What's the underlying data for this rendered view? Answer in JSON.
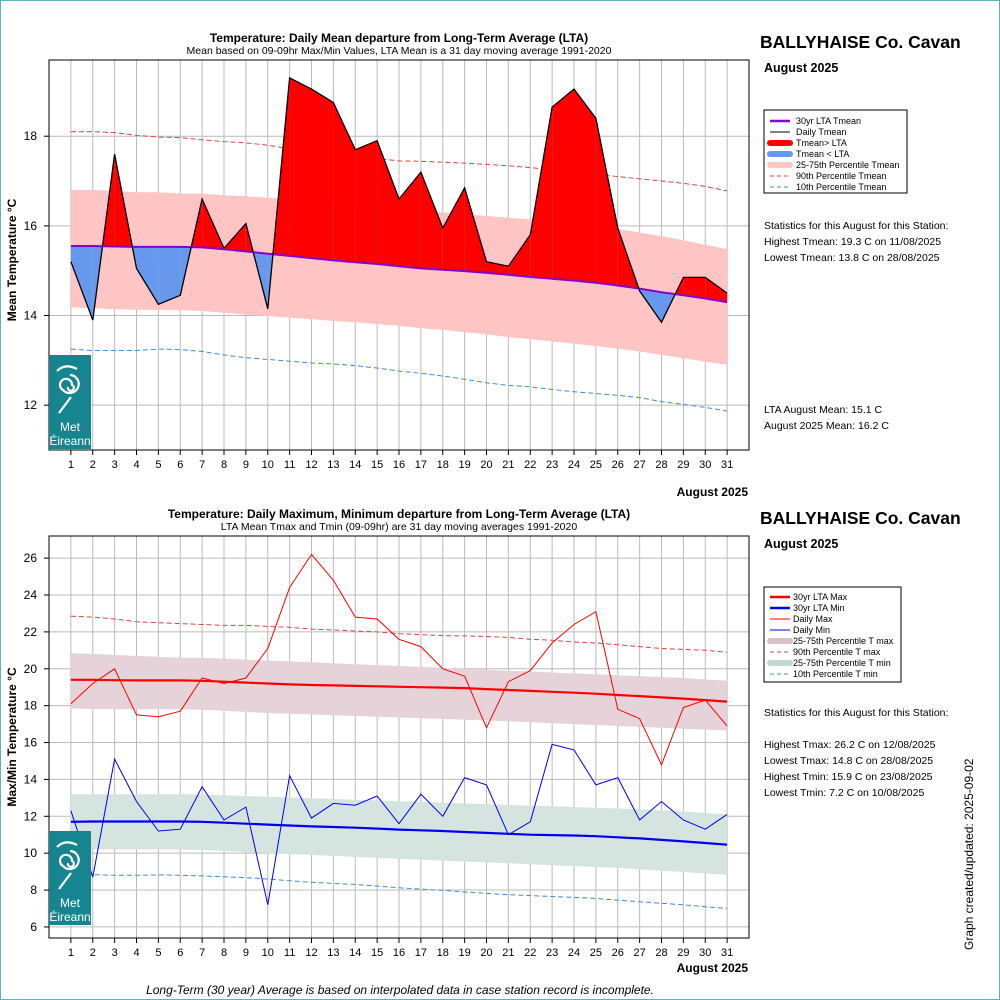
{
  "footer_note": "Long-Term (30 year) Average is based on interpolated data in case station record is incomplete.",
  "created_label": "Graph created/updated:  2025-09-02",
  "logo": {
    "line1": "Met",
    "line2": "Éireann",
    "color": "#17858f"
  },
  "top": {
    "title": "Temperature: Daily Mean departure from Long-Term Average (LTA)",
    "subtitle": "Mean based on 09-09hr Max/Min Values, LTA Mean is a 31 day moving average 1991-2020",
    "station": "BALLYHAISE Co. Cavan",
    "month": "August 2025",
    "ylabel": "Mean Temperature °C",
    "xlabel": "August 2025",
    "legend": [
      "30yr LTA Tmean",
      "Daily Tmean",
      "Tmean> LTA",
      "Tmean < LTA",
      "25-75th Percentile Tmean",
      "90th Percentile Tmean",
      "10th Percentile Tmean"
    ],
    "stats_heading": "Statistics for this August for this Station:",
    "stats": [
      "Highest Tmean: 19.3 C on 11/08/2025",
      "Lowest Tmean: 13.8 C on 28/08/2025"
    ],
    "means": [
      "LTA August Mean: 15.1 C",
      "August 2025 Mean: 16.2 C"
    ]
  },
  "bottom": {
    "title": "Temperature: Daily Maximum, Minimum departure from Long-Term Average (LTA)",
    "subtitle": "LTA Mean Tmax and Tmin (09-09hr) are 31 day moving averages 1991-2020",
    "station": "BALLYHAISE Co. Cavan",
    "month": "August 2025",
    "ylabel": "Max/Min Temperature °C",
    "xlabel": "August 2025",
    "legend": [
      "30yr LTA Max",
      "30yr LTA Min",
      "Daily Max",
      "Daily Min",
      "25-75th Percentile T max",
      "90th Percentile T max",
      "25-75th Percentile T min",
      "10th Percentile T min"
    ],
    "stats_heading": "Statistics for this August for this Station:",
    "stats": [
      "Highest Tmax: 26.2 C on 12/08/2025",
      "Lowest Tmax: 14.8 C on 28/08/2025",
      "Highest Tmin: 15.9 C on 23/08/2025",
      "Lowest Tmin: 7.2 C on 10/08/2025"
    ]
  },
  "chart_data": [
    {
      "type": "area",
      "x": [
        1,
        2,
        3,
        4,
        5,
        6,
        7,
        8,
        9,
        10,
        11,
        12,
        13,
        14,
        15,
        16,
        17,
        18,
        19,
        20,
        21,
        22,
        23,
        24,
        25,
        26,
        27,
        28,
        29,
        30,
        31
      ],
      "xlim": [
        0,
        32
      ],
      "ylim": [
        11,
        19.7
      ],
      "yticks": [
        12,
        14,
        16,
        18
      ],
      "series": [
        {
          "name": "Daily Tmean",
          "values": [
            15.2,
            13.9,
            17.6,
            15.05,
            14.25,
            14.45,
            16.6,
            15.5,
            16.05,
            14.15,
            19.3,
            19.05,
            18.75,
            17.7,
            17.9,
            16.6,
            17.2,
            15.95,
            16.85,
            15.2,
            15.1,
            15.8,
            18.65,
            19.05,
            18.4,
            15.95,
            14.55,
            13.85,
            14.85,
            14.85,
            14.5
          ]
        },
        {
          "name": "30yr LTA Tmean",
          "values": [
            15.55,
            15.55,
            15.54,
            15.53,
            15.53,
            15.53,
            15.52,
            15.48,
            15.43,
            15.38,
            15.33,
            15.28,
            15.23,
            15.19,
            15.15,
            15.1,
            15.05,
            15.02,
            14.99,
            14.95,
            14.91,
            14.86,
            14.82,
            14.78,
            14.73,
            14.67,
            14.6,
            14.52,
            14.45,
            14.38,
            14.3
          ]
        },
        {
          "name": "90th Percentile Tmean",
          "values": [
            18.1,
            18.1,
            18.08,
            18.02,
            17.98,
            17.97,
            17.92,
            17.88,
            17.85,
            17.8,
            17.72,
            17.68,
            17.62,
            17.55,
            17.5,
            17.45,
            17.44,
            17.42,
            17.4,
            17.37,
            17.34,
            17.3,
            17.25,
            17.2,
            17.15,
            17.1,
            17.05,
            17.0,
            16.95,
            16.88,
            16.78
          ]
        },
        {
          "name": "10th Percentile Tmean",
          "values": [
            13.25,
            13.22,
            13.22,
            13.22,
            13.25,
            13.24,
            13.2,
            13.12,
            13.06,
            13.02,
            12.98,
            12.94,
            12.92,
            12.88,
            12.83,
            12.76,
            12.71,
            12.65,
            12.58,
            12.5,
            12.44,
            12.41,
            12.35,
            12.3,
            12.26,
            12.22,
            12.17,
            12.08,
            12.02,
            11.95,
            11.87
          ]
        },
        {
          "name": "25-75th Percentile Tmean",
          "upper": [
            16.8,
            16.8,
            16.78,
            16.75,
            16.75,
            16.72,
            16.72,
            16.68,
            16.66,
            16.63,
            16.58,
            16.52,
            16.48,
            16.45,
            16.4,
            16.36,
            16.33,
            16.3,
            16.26,
            16.22,
            16.18,
            16.14,
            16.1,
            16.05,
            16.0,
            15.93,
            15.85,
            15.77,
            15.68,
            15.58,
            15.48
          ],
          "lower": [
            14.18,
            14.16,
            14.14,
            14.13,
            14.13,
            14.12,
            14.1,
            14.06,
            14.02,
            13.99,
            13.95,
            13.92,
            13.88,
            13.85,
            13.81,
            13.77,
            13.72,
            13.68,
            13.63,
            13.58,
            13.52,
            13.47,
            13.42,
            13.37,
            13.32,
            13.26,
            13.2,
            13.12,
            13.05,
            12.97,
            12.9
          ]
        }
      ]
    },
    {
      "type": "line",
      "x": [
        1,
        2,
        3,
        4,
        5,
        6,
        7,
        8,
        9,
        10,
        11,
        12,
        13,
        14,
        15,
        16,
        17,
        18,
        19,
        20,
        21,
        22,
        23,
        24,
        25,
        26,
        27,
        28,
        29,
        30,
        31
      ],
      "xlim": [
        0,
        32
      ],
      "ylim": [
        5.4,
        27.2
      ],
      "yticks": [
        6,
        8,
        10,
        12,
        14,
        16,
        18,
        20,
        22,
        24,
        26
      ],
      "series": [
        {
          "name": "Daily Max",
          "values": [
            18.1,
            19.2,
            20.0,
            17.5,
            17.4,
            17.7,
            19.5,
            19.2,
            19.5,
            21.1,
            24.4,
            26.2,
            24.8,
            22.8,
            22.7,
            21.6,
            21.2,
            20.0,
            19.6,
            16.8,
            19.3,
            19.9,
            21.4,
            22.4,
            23.1,
            17.8,
            17.3,
            14.8,
            17.9,
            18.3,
            16.9
          ]
        },
        {
          "name": "Daily Min",
          "values": [
            12.3,
            8.7,
            15.1,
            12.8,
            11.2,
            11.3,
            13.6,
            11.8,
            12.5,
            7.2,
            14.2,
            11.9,
            12.7,
            12.6,
            13.1,
            11.6,
            13.2,
            12.0,
            14.1,
            13.7,
            11.0,
            11.7,
            15.9,
            15.6,
            13.7,
            14.1,
            11.8,
            12.8,
            11.8,
            11.3,
            12.1
          ]
        },
        {
          "name": "30yr LTA Max",
          "values": [
            19.4,
            19.4,
            19.38,
            19.37,
            19.37,
            19.37,
            19.35,
            19.3,
            19.25,
            19.2,
            19.15,
            19.12,
            19.1,
            19.07,
            19.05,
            19.02,
            19.0,
            18.98,
            18.95,
            18.9,
            18.85,
            18.8,
            18.75,
            18.7,
            18.65,
            18.58,
            18.52,
            18.45,
            18.38,
            18.3,
            18.22
          ]
        },
        {
          "name": "30yr LTA Min",
          "values": [
            11.7,
            11.72,
            11.72,
            11.72,
            11.72,
            11.72,
            11.7,
            11.65,
            11.6,
            11.55,
            11.5,
            11.45,
            11.42,
            11.38,
            11.33,
            11.28,
            11.24,
            11.2,
            11.15,
            11.1,
            11.05,
            11.0,
            10.98,
            10.96,
            10.92,
            10.86,
            10.8,
            10.72,
            10.64,
            10.55,
            10.46
          ]
        },
        {
          "name": "90th Percentile T max",
          "values": [
            22.85,
            22.8,
            22.7,
            22.55,
            22.5,
            22.45,
            22.4,
            22.35,
            22.35,
            22.3,
            22.25,
            22.15,
            22.1,
            22.05,
            22.0,
            21.9,
            21.85,
            21.8,
            21.78,
            21.75,
            21.7,
            21.6,
            21.55,
            21.45,
            21.4,
            21.3,
            21.2,
            21.1,
            21.05,
            21.0,
            20.9
          ]
        },
        {
          "name": "10th Percentile T min",
          "values": [
            8.85,
            8.83,
            8.8,
            8.8,
            8.82,
            8.8,
            8.77,
            8.72,
            8.67,
            8.6,
            8.5,
            8.42,
            8.36,
            8.3,
            8.22,
            8.12,
            8.05,
            7.98,
            7.9,
            7.82,
            7.75,
            7.7,
            7.65,
            7.6,
            7.55,
            7.45,
            7.37,
            7.28,
            7.2,
            7.1,
            7.0
          ]
        },
        {
          "name": "25-75th Percentile T max",
          "upper": [
            20.85,
            20.8,
            20.75,
            20.7,
            20.65,
            20.6,
            20.6,
            20.55,
            20.5,
            20.45,
            20.4,
            20.35,
            20.3,
            20.25,
            20.2,
            20.15,
            20.1,
            20.05,
            20.0,
            19.95,
            19.9,
            19.85,
            19.8,
            19.75,
            19.7,
            19.65,
            19.6,
            19.55,
            19.5,
            19.42,
            19.35
          ],
          "lower": [
            17.85,
            17.82,
            17.8,
            17.8,
            17.8,
            17.8,
            17.78,
            17.72,
            17.66,
            17.6,
            17.56,
            17.52,
            17.48,
            17.44,
            17.4,
            17.36,
            17.32,
            17.28,
            17.24,
            17.2,
            17.15,
            17.1,
            17.05,
            17.0,
            16.95,
            16.9,
            16.85,
            16.8,
            16.75,
            16.7,
            16.65
          ]
        },
        {
          "name": "25-75th Percentile T min",
          "upper": [
            13.2,
            13.2,
            13.2,
            13.2,
            13.2,
            13.2,
            13.18,
            13.14,
            13.1,
            13.06,
            13.02,
            12.98,
            12.94,
            12.9,
            12.86,
            12.82,
            12.78,
            12.74,
            12.7,
            12.66,
            12.62,
            12.58,
            12.54,
            12.5,
            12.46,
            12.42,
            12.38,
            12.32,
            12.26,
            12.18,
            12.1
          ],
          "lower": [
            10.25,
            10.22,
            10.2,
            10.2,
            10.2,
            10.2,
            10.18,
            10.12,
            10.06,
            10.0,
            9.95,
            9.9,
            9.85,
            9.8,
            9.75,
            9.7,
            9.65,
            9.6,
            9.55,
            9.5,
            9.45,
            9.4,
            9.35,
            9.3,
            9.25,
            9.2,
            9.12,
            9.05,
            8.98,
            8.9,
            8.82
          ]
        }
      ]
    }
  ],
  "colors": {
    "above": "#ff0000",
    "below": "#6699ee",
    "band_mean": "#ffc4c4",
    "lta_mean": "#8800cc",
    "p90": "#dd4444",
    "p10": "#4488dd",
    "band_max": "#e6d2d9",
    "band_min": "#d6e4e0",
    "lta_max": "#ff0000",
    "lta_min": "#0000ee",
    "daily_max": "#ff0000",
    "daily_min": "#0000ee",
    "grid": "#bbbbbb"
  }
}
